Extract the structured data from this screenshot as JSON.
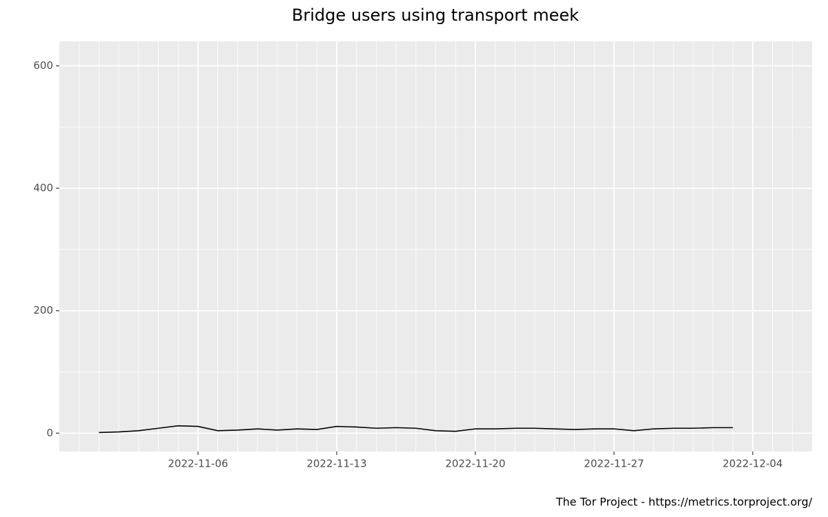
{
  "chart_data": {
    "type": "line",
    "title": "Bridge users using transport meek",
    "caption": "The Tor Project - https://metrics.torproject.org/",
    "x": [
      "2022-11-01",
      "2022-11-02",
      "2022-11-03",
      "2022-11-04",
      "2022-11-05",
      "2022-11-06",
      "2022-11-07",
      "2022-11-08",
      "2022-11-09",
      "2022-11-10",
      "2022-11-11",
      "2022-11-12",
      "2022-11-13",
      "2022-11-14",
      "2022-11-15",
      "2022-11-16",
      "2022-11-17",
      "2022-11-18",
      "2022-11-19",
      "2022-11-20",
      "2022-11-21",
      "2022-11-22",
      "2022-11-23",
      "2022-11-24",
      "2022-11-25",
      "2022-11-26",
      "2022-11-27",
      "2022-11-28",
      "2022-11-29",
      "2022-11-30",
      "2022-12-01",
      "2022-12-02",
      "2022-12-03"
    ],
    "series": [
      {
        "name": "meek",
        "color": "#000000",
        "values": [
          1,
          2,
          4,
          8,
          12,
          11,
          4,
          5,
          7,
          5,
          7,
          6,
          11,
          10,
          8,
          9,
          8,
          4,
          3,
          7,
          7,
          8,
          8,
          7,
          6,
          7,
          7,
          4,
          7,
          8,
          8,
          9,
          9
        ]
      }
    ],
    "xlim": [
      "2022-10-30",
      "2022-12-07"
    ],
    "xticks": [
      "2022-11-06",
      "2022-11-13",
      "2022-11-20",
      "2022-11-27",
      "2022-12-04"
    ],
    "xminorticks": [
      "2022-10-31",
      "2022-11-01",
      "2022-11-02",
      "2022-11-03",
      "2022-11-04",
      "2022-11-05",
      "2022-11-07",
      "2022-11-08",
      "2022-11-09",
      "2022-11-10",
      "2022-11-11",
      "2022-11-12",
      "2022-11-14",
      "2022-11-15",
      "2022-11-16",
      "2022-11-17",
      "2022-11-18",
      "2022-11-19",
      "2022-11-21",
      "2022-11-22",
      "2022-11-23",
      "2022-11-24",
      "2022-11-25",
      "2022-11-26",
      "2022-11-28",
      "2022-11-29",
      "2022-11-30",
      "2022-12-01",
      "2022-12-02",
      "2022-12-03",
      "2022-12-05",
      "2022-12-06"
    ],
    "ylim": [
      -30,
      640
    ],
    "yticks": [
      0,
      200,
      400,
      600
    ],
    "yminorticks": [
      100,
      300,
      500
    ],
    "grid": true
  }
}
